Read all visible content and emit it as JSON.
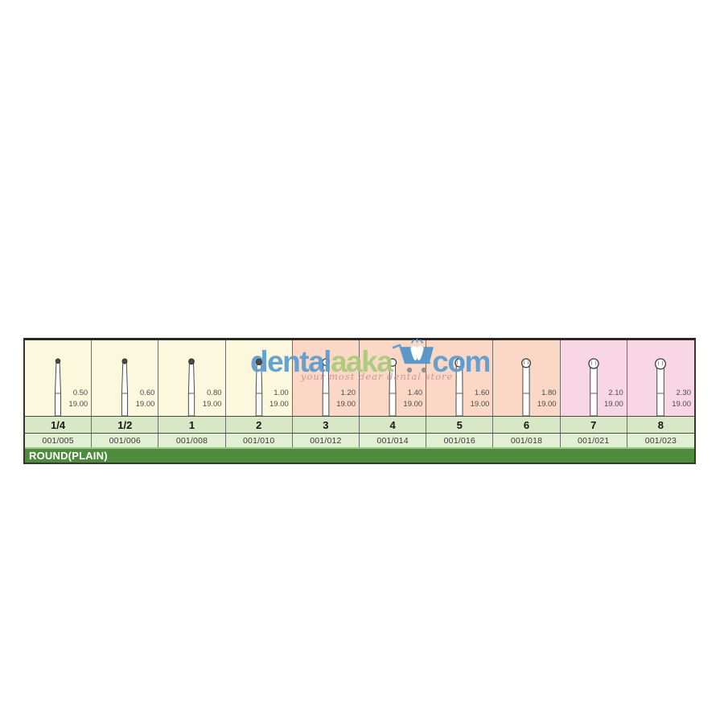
{
  "watermark": {
    "brand_dental": "dental",
    "brand_aaka": "aaka",
    "brand_com": "com",
    "tagline": "your most dear dental store",
    "cart_icon": "shopping-cart-tooth-icon",
    "colors": {
      "blue": "#5C9CCF",
      "green": "#A9CB7B",
      "tagline": "#CF8F9B"
    }
  },
  "table": {
    "category_label": "ROUND(PLAIN)",
    "group_colors": {
      "yellow": "#fbf8de",
      "salmon": "#fad8c5",
      "pink": "#f8d6e4"
    },
    "row_colors": {
      "size_row": "#D8E8C6",
      "iso_row": "#E1EFD3",
      "category_bar": "#4E8B3D"
    },
    "columns": [
      {
        "size": "1/4",
        "iso": "001/005",
        "head_diameter": "0.50",
        "length": "19.00",
        "group": "yellow"
      },
      {
        "size": "1/2",
        "iso": "001/006",
        "head_diameter": "0.60",
        "length": "19.00",
        "group": "yellow"
      },
      {
        "size": "1",
        "iso": "001/008",
        "head_diameter": "0.80",
        "length": "19.00",
        "group": "yellow"
      },
      {
        "size": "2",
        "iso": "001/010",
        "head_diameter": "1.00",
        "length": "19.00",
        "group": "yellow"
      },
      {
        "size": "3",
        "iso": "001/012",
        "head_diameter": "1.20",
        "length": "19.00",
        "group": "salmon"
      },
      {
        "size": "4",
        "iso": "001/014",
        "head_diameter": "1.40",
        "length": "19.00",
        "group": "salmon"
      },
      {
        "size": "5",
        "iso": "001/016",
        "head_diameter": "1.60",
        "length": "19.00",
        "group": "salmon"
      },
      {
        "size": "6",
        "iso": "001/018",
        "head_diameter": "1.80",
        "length": "19.00",
        "group": "salmon"
      },
      {
        "size": "7",
        "iso": "001/021",
        "head_diameter": "2.10",
        "length": "19.00",
        "group": "pink"
      },
      {
        "size": "8",
        "iso": "001/023",
        "head_diameter": "2.30",
        "length": "19.00",
        "group": "pink"
      }
    ]
  }
}
